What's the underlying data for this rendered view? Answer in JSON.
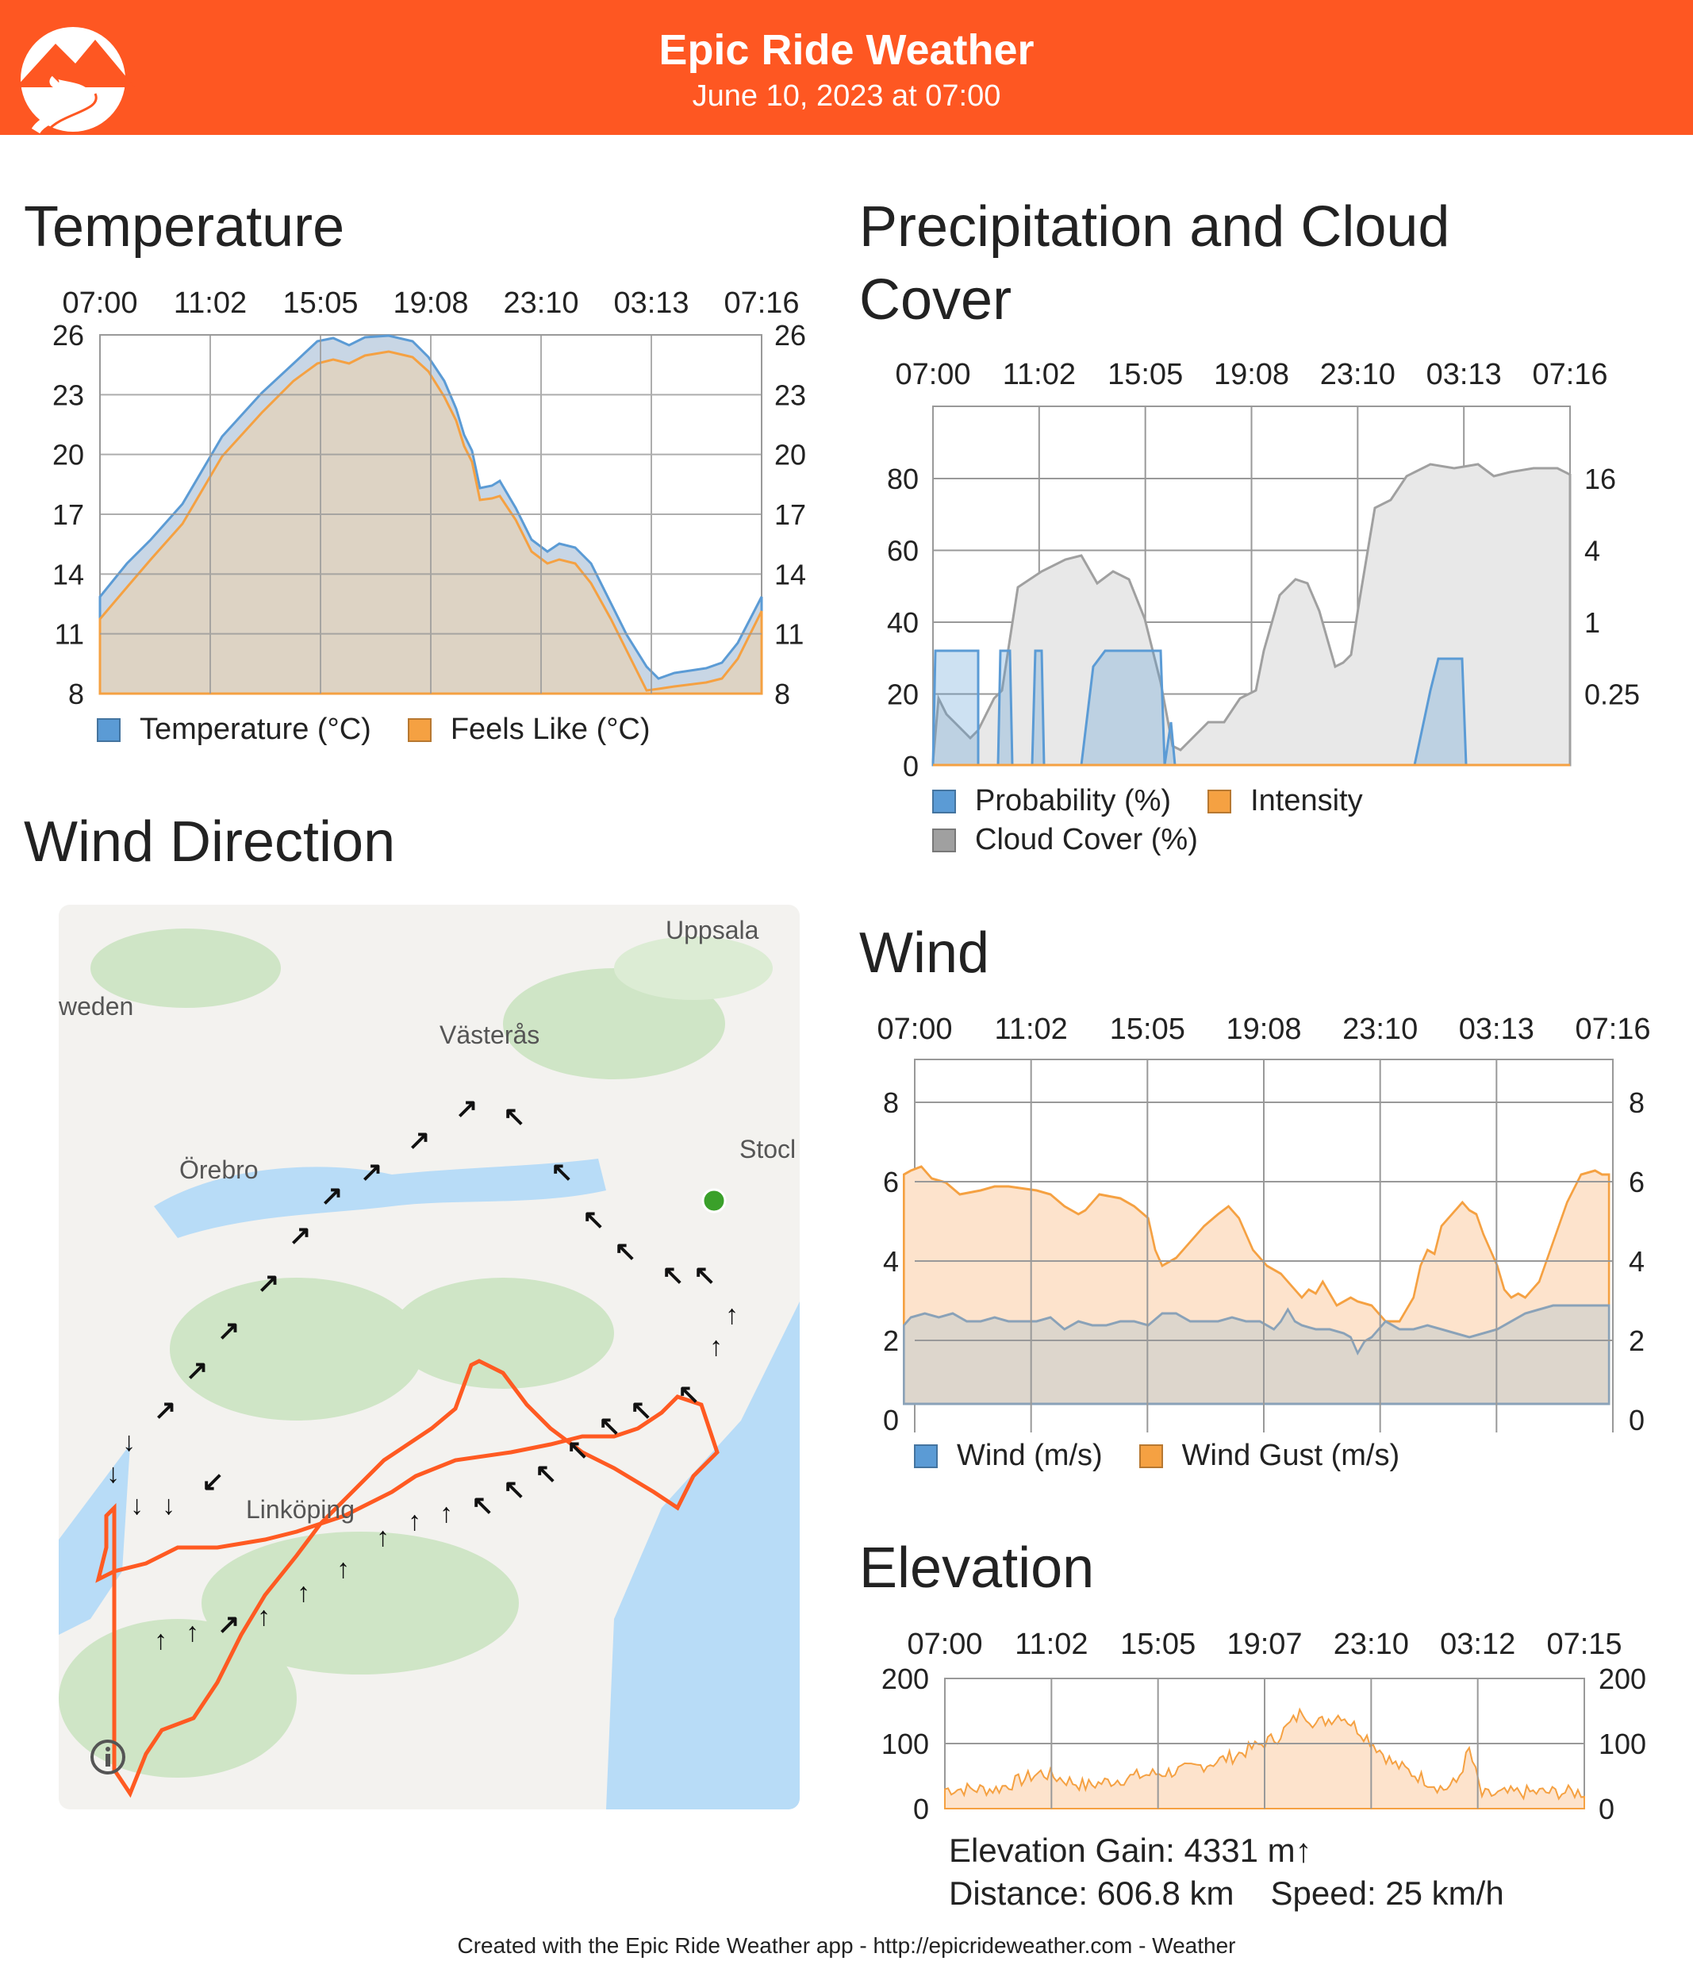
{
  "header": {
    "title": "Epic Ride Weather",
    "date": "June 10, 2023 at 07:00",
    "color": "#fe5722"
  },
  "temperature": {
    "title": "Temperature",
    "time_labels": [
      "07:00",
      "11:02",
      "15:05",
      "19:08",
      "23:10",
      "03:13",
      "07:16"
    ],
    "y_ticks": [
      "26",
      "23",
      "20",
      "17",
      "14",
      "11",
      "8"
    ],
    "legend": [
      "Temperature (°C)",
      "Feels Like (°C)"
    ],
    "colors": {
      "temperature": "#5b9bd5",
      "feels_like": "#f5a142"
    }
  },
  "precipitation": {
    "title_line1": "Precipitation and Cloud",
    "title_line2": "Cover",
    "time_labels": [
      "07:00",
      "11:02",
      "15:05",
      "19:08",
      "23:10",
      "03:13",
      "07:16"
    ],
    "left_ticks": [
      "80",
      "60",
      "40",
      "20",
      "0"
    ],
    "right_ticks": [
      "16",
      "4",
      "1",
      "0.25"
    ],
    "legend": [
      "Probability (%)",
      "Intensity",
      "Cloud Cover (%)"
    ],
    "colors": {
      "probability": "#5b9bd5",
      "intensity": "#f5a142",
      "cloud": "#a0a0a0"
    }
  },
  "wind_direction": {
    "title": "Wind Direction",
    "map_labels": {
      "uppsala": "Uppsala",
      "sweden": "weden",
      "vasteras": "Västerås",
      "orebro": "Örebro",
      "stockholm": "Stocl",
      "linkoping": "Linköping"
    },
    "info_icon": "info-icon"
  },
  "wind": {
    "title": "Wind",
    "time_labels": [
      "07:00",
      "11:02",
      "15:05",
      "19:08",
      "23:10",
      "03:13",
      "07:16"
    ],
    "y_ticks": [
      "8",
      "6",
      "4",
      "2",
      "0"
    ],
    "legend": [
      "Wind (m/s)",
      "Wind Gust (m/s)"
    ],
    "colors": {
      "wind": "#5b9bd5",
      "gust": "#f5a142"
    }
  },
  "elevation": {
    "title": "Elevation",
    "time_labels": [
      "07:00",
      "11:02",
      "15:05",
      "19:07",
      "23:10",
      "03:12",
      "07:15"
    ],
    "y_ticks": [
      "200",
      "100",
      "0"
    ],
    "gain": "Elevation Gain: 4331 m↑",
    "distance": "Distance: 606.8 km",
    "speed": "Speed: 25 km/h"
  },
  "footer": {
    "text": "Created with the Epic Ride Weather app - http://epicrideweather.com -  Weather"
  }
}
